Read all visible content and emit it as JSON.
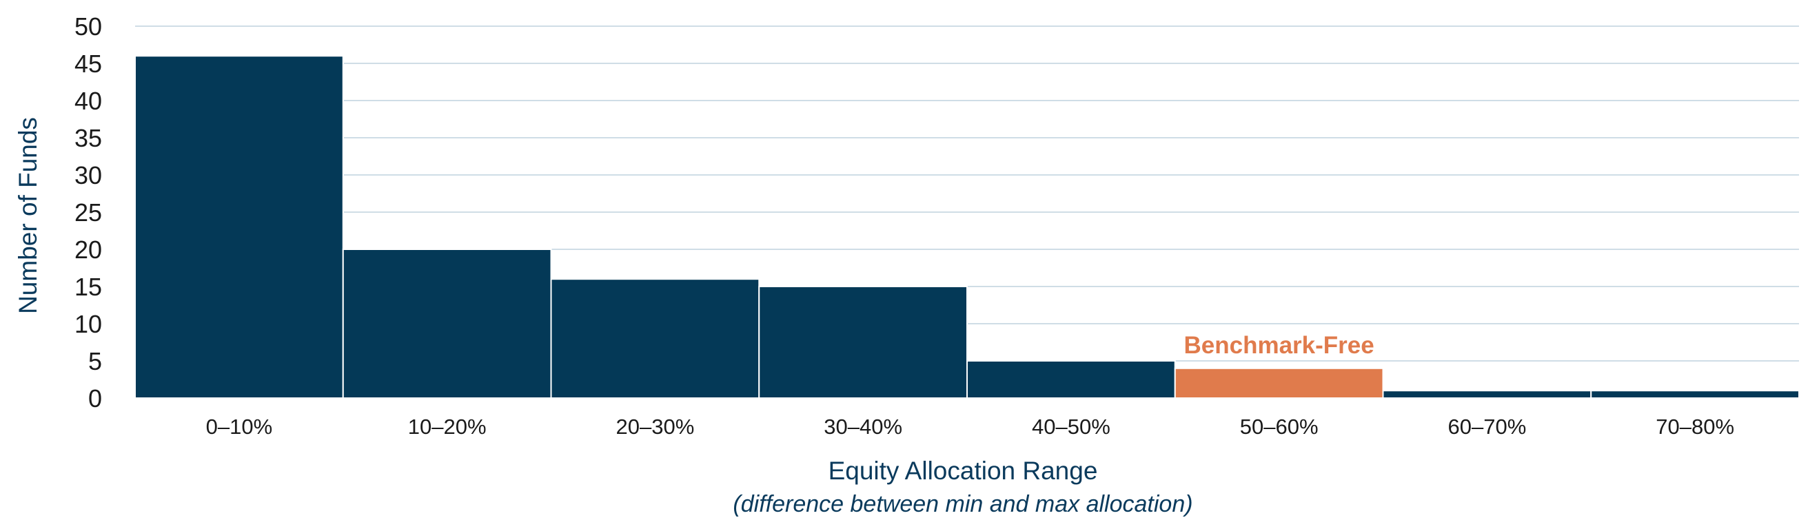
{
  "chart_data": {
    "type": "bar",
    "categories": [
      "0–10%",
      "10–20%",
      "20–30%",
      "30–40%",
      "40–50%",
      "50–60%",
      "60–70%",
      "70–80%"
    ],
    "values": [
      46,
      20,
      16,
      15,
      5,
      4,
      1,
      1
    ],
    "highlight_index": 5,
    "annotation": "Benchmark-Free",
    "xlabel": "Equity Allocation Range",
    "xlabel_sub": "(difference between min and max allocation)",
    "ylabel": "Number of Funds",
    "ylim": [
      0,
      50
    ],
    "yticks": [
      0,
      5,
      10,
      15,
      20,
      25,
      30,
      35,
      40,
      45,
      50
    ],
    "grid": true,
    "colors": {
      "bar": "#043957",
      "highlight": "#e07b4c",
      "grid": "#cfdde6",
      "text": "#0a3a5c"
    }
  }
}
